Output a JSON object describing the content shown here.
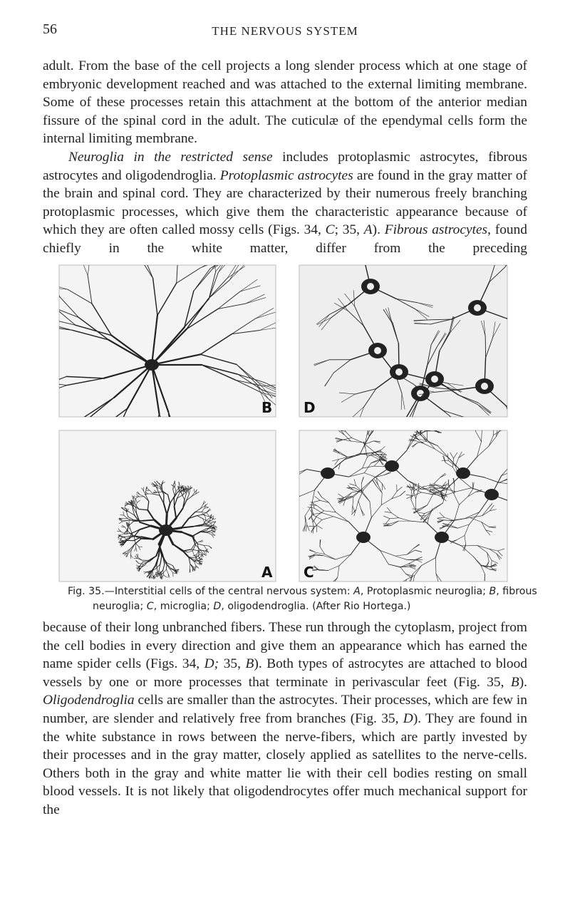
{
  "header": {
    "page_number": "56",
    "running_title": "THE NERVOUS SYSTEM"
  },
  "paragraphs_top": [
    {
      "segments": [
        {
          "text": "adult. From the base of the cell projects a long slender process which at one stage of embryonic development reached and was attached to the external limiting membrane. Some of these processes retain this attachment at the bottom of the anterior median fissure of the spinal cord in the adult. The cuticulæ of the ependymal cells form the internal limiting membrane."
        }
      ]
    },
    {
      "indent": true,
      "continues": true,
      "segments": [
        {
          "text": "Neuroglia in the restricted sense",
          "italic": true
        },
        {
          "text": " includes protoplasmic astrocytes, fibrous astrocytes and oligodendroglia. "
        },
        {
          "text": "Protoplasmic astrocytes",
          "italic": true
        },
        {
          "text": " are found in the gray matter of the brain and spinal cord. They are characterized by their numerous freely branching protoplasmic processes, which give them the characteristic appearance because of which they are often called mossy cells (Figs. 34, "
        },
        {
          "text": "C",
          "italic": true
        },
        {
          "text": "; 35, "
        },
        {
          "text": "A",
          "italic": true
        },
        {
          "text": "). "
        },
        {
          "text": "Fibrous astrocytes",
          "italic": true
        },
        {
          "text": ", found chiefly in the white matter, differ from the preceding"
        }
      ]
    }
  ],
  "figure": {
    "panels": [
      {
        "label": "B"
      },
      {
        "label": "D"
      },
      {
        "label": "A"
      },
      {
        "label": "C"
      }
    ],
    "caption": [
      {
        "text": "Fig. 35.—Interstitial cells of the central nervous system: "
      },
      {
        "text": "A",
        "italic": true
      },
      {
        "text": ", Protoplasmic neuroglia; "
      },
      {
        "text": "B",
        "italic": true
      },
      {
        "text": ", fibrous neuroglia; "
      },
      {
        "text": "C",
        "italic": true
      },
      {
        "text": ", microglia; "
      },
      {
        "text": "D",
        "italic": true
      },
      {
        "text": ", oligodendroglia. (After Rio Hortega.)"
      }
    ]
  },
  "paragraphs_bottom": [
    {
      "continues": true,
      "segments": [
        {
          "text": "because of their long unbranched fibers. These run through the cytoplasm, project from the cell bodies in every direction and give them an appearance which has earned the name spider cells (Figs. 34, "
        },
        {
          "text": "D;",
          "italic": true
        },
        {
          "text": " 35, "
        },
        {
          "text": "B",
          "italic": true
        },
        {
          "text": "). Both types of astrocytes are attached to blood vessels by one or more processes that terminate in perivascular feet (Fig. 35, "
        },
        {
          "text": "B",
          "italic": true
        },
        {
          "text": "). "
        },
        {
          "text": "Oligodendroglia",
          "italic": true
        },
        {
          "text": " cells are smaller than the astrocytes. Their processes, which are few in number, are slender and relatively free from branches (Fig. 35, "
        },
        {
          "text": "D",
          "italic": true
        },
        {
          "text": "). They are found in the white substance in rows between the nerve-fibers, which are partly invested by their processes and in the gray matter, closely applied as satellites to the nerve-cells. Others both in the gray and white matter lie with their cell bodies resting on small blood vessels. It is not likely that oligodendrocytes offer much mechanical support for the"
        }
      ]
    }
  ]
}
